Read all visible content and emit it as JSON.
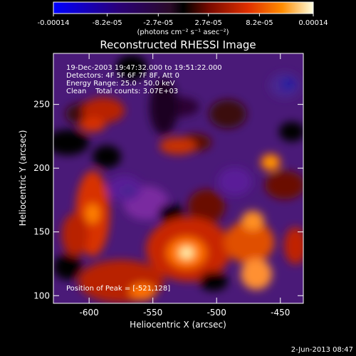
{
  "chart_data": {
    "type": "heatmap",
    "title": "Reconstructed RHESSI Image",
    "colorbar": {
      "ticks": [
        "-0.00014",
        "-8.2e-05",
        "-2.7e-05",
        "2.7e-05",
        "8.2e-05",
        "0.00014"
      ],
      "vmin": -0.00014,
      "vmax": 0.00014,
      "label": "(photons cm⁻² s⁻¹ asec⁻²)"
    },
    "xlabel": "Heliocentric X (arcsec)",
    "ylabel": "Heliocentric Y (arcsec)",
    "xlim": [
      -628,
      -432
    ],
    "ylim": [
      94,
      290
    ],
    "xticks": [
      "-600",
      "-550",
      "-500",
      "-450"
    ],
    "yticks": [
      "100",
      "150",
      "200",
      "250"
    ],
    "annotations": [
      "19-Dec-2003 19:47:32.000 to 19:51:22.000",
      "Detectors: 4F 5F 6F 7F 8F, Att 0",
      "Energy Range: 25.0 - 50.0 keV",
      "Clean    Total counts: 3.07E+03"
    ],
    "peak_label": "Position of Peak = [-521,128]",
    "peak_position": [
      -521,
      128
    ],
    "date_stamp": "2-Jun-2013 08:47",
    "grid": false
  },
  "colors": {
    "cmap": [
      "#0000ff",
      "#2a0078",
      "#5a1e8c",
      "#7a2aa0",
      "#3a1a3a",
      "#5a0a00",
      "#b42000",
      "#e64000",
      "#ff7800",
      "#ffb432",
      "#ffffc8"
    ]
  }
}
